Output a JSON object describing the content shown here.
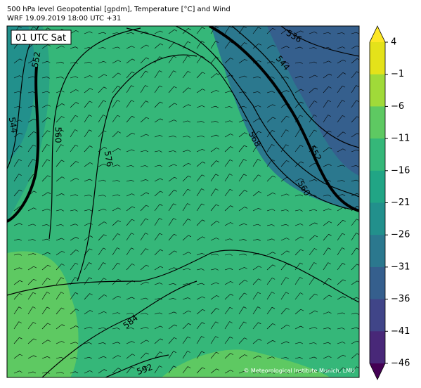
{
  "header": {
    "title": "500 hPa level Geopotential [gpdm], Temperature [°C] and Wind",
    "subtitle": "WRF 19.09.2019 18:00 UTC +31"
  },
  "map": {
    "time_label": "01 UTC Sat",
    "copyright": "© Meteorological Institute Munich, LMU",
    "contour_labels": [
      "552",
      "544",
      "560",
      "576",
      "536",
      "544",
      "568",
      "552",
      "560",
      "584",
      "592"
    ]
  },
  "colorbar": {
    "ticks": [
      4,
      {
        "value": -1,
        "label": "−1"
      },
      {
        "value": -6,
        "label": "−6"
      },
      {
        "value": -11,
        "label": "−11"
      },
      {
        "value": -16,
        "label": "−16"
      },
      {
        "value": -21,
        "label": "−21"
      },
      {
        "value": -26,
        "label": "−26"
      },
      {
        "value": -31,
        "label": "−31"
      },
      {
        "value": -36,
        "label": "−36"
      },
      {
        "value": -41,
        "label": "−41"
      },
      {
        "value": -46,
        "label": "−46"
      }
    ],
    "colors": [
      "#e4e21a",
      "#a0da39",
      "#5ec962",
      "#35b779",
      "#21a585",
      "#22908c",
      "#2b788e",
      "#355f8d",
      "#404588",
      "#482878"
    ],
    "extend_colors": [
      "#fde725",
      "#440154"
    ]
  }
}
